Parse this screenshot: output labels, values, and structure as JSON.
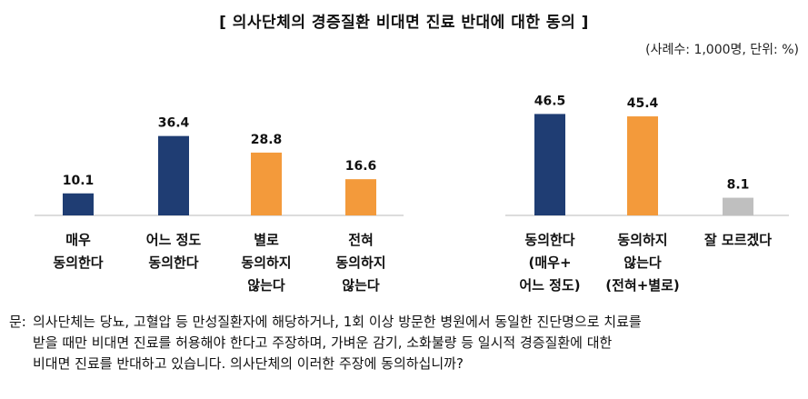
{
  "title": "[ 의사단체의 경증질환 비대면 진료 반대에 대한 동의 ]",
  "unit_note": "(사례수: 1,000명, 단위: %)",
  "chart_data": {
    "type": "bar",
    "title": "[ 의사단체의 경증질환 비대면 진료 반대에 대한 동의 ]",
    "ylim": [
      0,
      55
    ],
    "grid": false,
    "groups": [
      {
        "categories": [
          "매우\n동의한다",
          "어느 정도\n동의한다",
          "별로\n동의하지\n않는다",
          "전혀\n동의하지\n않는다"
        ],
        "values": [
          10.1,
          36.4,
          28.8,
          16.6
        ],
        "colors": [
          "#1f3d73",
          "#1f3d73",
          "#f39a3b",
          "#f39a3b"
        ]
      },
      {
        "categories": [
          "동의한다\n(매우+\n어느 정도)",
          "동의하지\n않는다\n(전혀+별로)",
          "잘 모르겠다"
        ],
        "values": [
          46.5,
          45.4,
          8.1
        ],
        "colors": [
          "#1f3d73",
          "#f39a3b",
          "#bfbfbf"
        ]
      }
    ]
  },
  "question": {
    "prefix": "문:",
    "lines": [
      "의사단체는 당뇨, 고혈압 등 만성질환자에 해당하거나, 1회 이상 방문한 병원에서 동일한 진단명으로 치료를",
      "받을 때만 비대면 진료를 허용해야 한다고 주장하며, 가벼운 감기, 소화불량 등 일시적 경증질환에 대한",
      "비대면 진료를 반대하고 있습니다. 의사단체의 이러한 주장에 동의하십니까?"
    ]
  }
}
